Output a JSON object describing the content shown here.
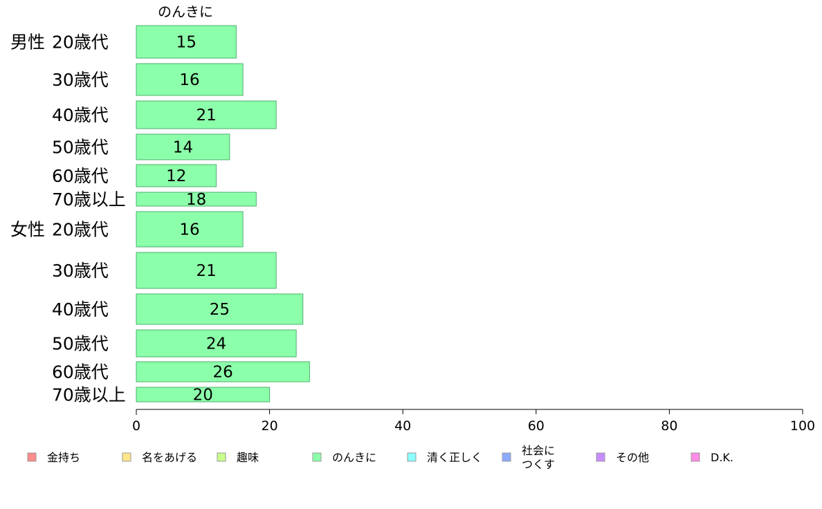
{
  "chart_data": {
    "type": "bar",
    "orientation": "horizontal",
    "column_title": "のんきに",
    "categories": [
      {
        "group": "男性",
        "label": "20歳代",
        "value": 15
      },
      {
        "group": "",
        "label": "30歳代",
        "value": 16
      },
      {
        "group": "",
        "label": "40歳代",
        "value": 21
      },
      {
        "group": "",
        "label": "50歳代",
        "value": 14
      },
      {
        "group": "",
        "label": "60歳代",
        "value": 12
      },
      {
        "group": "",
        "label": "70歳以上",
        "value": 18
      },
      {
        "group": "女性",
        "label": "20歳代",
        "value": 16
      },
      {
        "group": "",
        "label": "30歳代",
        "value": 21
      },
      {
        "group": "",
        "label": "40歳代",
        "value": 25
      },
      {
        "group": "",
        "label": "50歳代",
        "value": 24
      },
      {
        "group": "",
        "label": "60歳代",
        "value": 26
      },
      {
        "group": "",
        "label": "70歳以上",
        "value": 20
      }
    ],
    "xlim": [
      0,
      100
    ],
    "xticks": [
      "0",
      "20",
      "40",
      "60",
      "80",
      "100"
    ],
    "bar_color": "#8cffaa",
    "bar_stroke": "#4caf6e",
    "legend": [
      {
        "lines": [
          "金持ち"
        ],
        "color": "#ff8c8c"
      },
      {
        "lines": [
          "名をあげる"
        ],
        "color": "#ffe68c"
      },
      {
        "lines": [
          "趣味"
        ],
        "color": "#c8ff8c"
      },
      {
        "lines": [
          "のんきに"
        ],
        "color": "#8cffaa"
      },
      {
        "lines": [
          "清く正しく"
        ],
        "color": "#8cffff"
      },
      {
        "lines": [
          "社会に",
          "つくす"
        ],
        "color": "#8caaff"
      },
      {
        "lines": [
          "その他"
        ],
        "color": "#c88cff"
      },
      {
        "lines": [
          "D.K."
        ],
        "color": "#ff8ce6"
      }
    ]
  }
}
